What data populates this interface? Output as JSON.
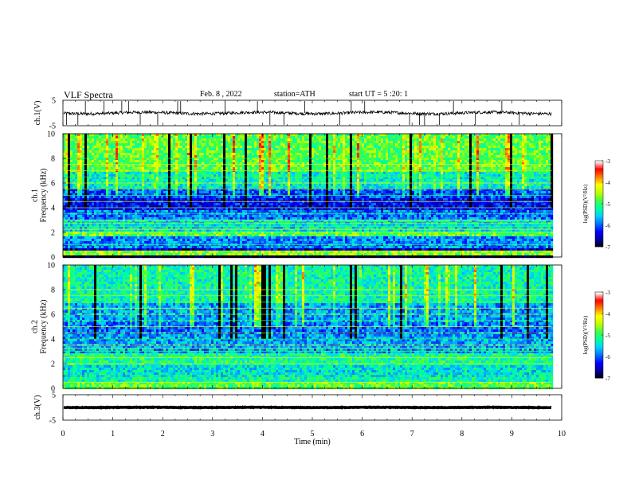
{
  "header": {
    "title": "VLF  Spectra",
    "date": "Feb. 8  , 2022",
    "station": "station=ATH",
    "start": "start  UT  =   5  :20: 1"
  },
  "colors": {
    "colormap": [
      "#000000",
      "#0000a0",
      "#0000ff",
      "#0070ff",
      "#00d0ff",
      "#00ffa0",
      "#40ff40",
      "#c0ff00",
      "#ffff00",
      "#ff8000",
      "#ff0000",
      "#ffffff"
    ],
    "trace": "#000000"
  },
  "chart_data": [
    {
      "id": "ch1-waveform",
      "type": "line",
      "ylabel": "ch.1(V)",
      "ylim": [
        -5,
        5
      ],
      "yticks": [
        5,
        -5
      ],
      "xlim": [
        0,
        10
      ],
      "baseline": 0,
      "noise_amplitude": 0.6,
      "data_end_x": 9.8,
      "spikes_x": [
        0.07,
        0.3,
        0.45,
        0.82,
        1.18,
        1.32,
        1.55,
        1.9,
        2.3,
        2.36,
        3.25,
        3.9,
        4.15,
        4.43,
        4.85,
        5.55,
        5.78,
        6.05,
        6.95,
        7.15,
        7.25,
        7.55,
        7.83,
        8.27,
        8.8,
        9.15
      ]
    },
    {
      "id": "ch1-spectrogram",
      "type": "heatmap",
      "ylabel": "ch.1\nFrequency  (kHz)",
      "xlim": [
        0,
        10
      ],
      "ylim": [
        0,
        10
      ],
      "yticks": [
        0,
        2,
        4,
        6,
        8,
        10
      ],
      "data_end_x": 9.8,
      "colorbar": {
        "label": "log(PSD)(V²/Hz)",
        "range": [
          -7,
          -3
        ],
        "ticks": [
          -3,
          -4,
          -5,
          -6,
          -7
        ]
      },
      "bands": [
        {
          "from": 0,
          "to": 0.25,
          "level": -7
        },
        {
          "from": 0.25,
          "to": 0.6,
          "level": -4.6
        },
        {
          "from": 0.6,
          "to": 0.9,
          "level": -6.5
        },
        {
          "from": 0.9,
          "to": 1.8,
          "level": -5.8
        },
        {
          "from": 1.8,
          "to": 2.2,
          "level": -4.8
        },
        {
          "from": 2.2,
          "to": 3.2,
          "level": -5.4
        },
        {
          "from": 3.2,
          "to": 3.9,
          "level": -5.9
        },
        {
          "from": 3.9,
          "to": 4.9,
          "level": -6.3
        },
        {
          "from": 4.9,
          "to": 5.6,
          "level": -6.0
        },
        {
          "from": 5.6,
          "to": 7.0,
          "level": -5.3
        },
        {
          "from": 7.0,
          "to": 10,
          "level": -4.8
        }
      ],
      "horizontal_lines_khz": [
        0.5,
        1.0,
        2.0,
        2.25,
        2.5,
        2.75,
        3.0,
        3.5,
        4.0,
        4.5,
        5.0,
        5.5,
        6.0,
        6.5,
        7.0,
        7.5,
        8.0
      ]
    },
    {
      "id": "ch2-spectrogram",
      "type": "heatmap",
      "ylabel": "ch.2\nFrequency  (kHz)",
      "xlim": [
        0,
        10
      ],
      "ylim": [
        0,
        10
      ],
      "yticks": [
        0,
        2,
        4,
        6,
        8,
        10
      ],
      "data_end_x": 9.8,
      "colorbar": {
        "label": "log(PSD)(V²/Hz)",
        "range": [
          -7,
          -3
        ],
        "ticks": [
          -3,
          -4,
          -5,
          -6,
          -7
        ]
      },
      "bands": [
        {
          "from": 0,
          "to": 0.6,
          "level": -4.8
        },
        {
          "from": 0.6,
          "to": 1.0,
          "level": -5.2
        },
        {
          "from": 1.0,
          "to": 2.0,
          "level": -5.4
        },
        {
          "from": 2.0,
          "to": 3.0,
          "level": -5.1
        },
        {
          "from": 3.0,
          "to": 4.5,
          "level": -5.7
        },
        {
          "from": 4.5,
          "to": 5.5,
          "level": -5.9
        },
        {
          "from": 5.5,
          "to": 7.0,
          "level": -5.7
        },
        {
          "from": 7.0,
          "to": 10,
          "level": -5.2
        }
      ],
      "horizontal_lines_khz": [
        0.5,
        1.0,
        2.0,
        2.5,
        3.0,
        3.25,
        3.5,
        4.0,
        4.5,
        5.0,
        5.5,
        6.0,
        6.5,
        7.0,
        7.5,
        8.0
      ]
    },
    {
      "id": "ch3-waveform",
      "type": "line",
      "ylabel": "ch.3(V)",
      "xlabel": "Time  (min)",
      "ylim": [
        -5,
        5
      ],
      "yticks": [
        5,
        -5
      ],
      "xlim": [
        0,
        10
      ],
      "xticks": [
        0,
        1,
        2,
        3,
        4,
        5,
        6,
        7,
        8,
        9,
        10
      ],
      "baseline": 0,
      "noise_amplitude": 0.1,
      "data_end_x": 9.8
    }
  ]
}
